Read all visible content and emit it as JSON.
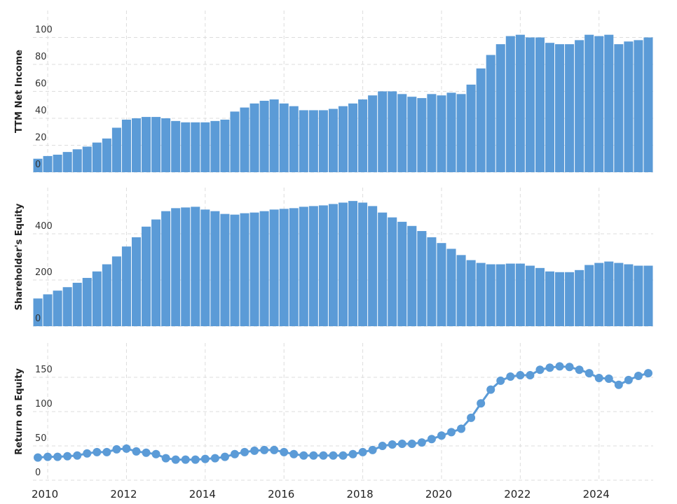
{
  "chart_data": [
    {
      "type": "bar",
      "ylabel": "TTM Net Income",
      "color": "#5b9bd7",
      "grid": true,
      "xlim": [
        2009.625,
        2025.375
      ],
      "ylim": [
        0,
        120
      ],
      "yticks": [
        0,
        20,
        40,
        60,
        80,
        100
      ],
      "x": [
        2009.75,
        2010,
        2010.25,
        2010.5,
        2010.75,
        2011,
        2011.25,
        2011.5,
        2011.75,
        2012,
        2012.25,
        2012.5,
        2012.75,
        2013,
        2013.25,
        2013.5,
        2013.75,
        2014,
        2014.25,
        2014.5,
        2014.75,
        2015,
        2015.25,
        2015.5,
        2015.75,
        2016,
        2016.25,
        2016.5,
        2016.75,
        2017,
        2017.25,
        2017.5,
        2017.75,
        2018,
        2018.25,
        2018.5,
        2018.75,
        2019,
        2019.25,
        2019.5,
        2019.75,
        2020,
        2020.25,
        2020.5,
        2020.75,
        2021,
        2021.25,
        2021.5,
        2021.75,
        2022,
        2022.25,
        2022.5,
        2022.75,
        2023,
        2023.25,
        2023.5,
        2023.75,
        2024,
        2024.25,
        2024.5,
        2024.75,
        2025,
        2025.25
      ],
      "values": [
        10,
        12,
        13,
        15,
        17,
        19,
        22,
        25,
        33,
        39,
        40,
        41,
        41,
        40,
        38,
        37,
        37,
        37,
        38,
        39,
        45,
        48,
        51,
        53,
        54,
        51,
        49,
        46,
        46,
        46,
        47,
        49,
        51,
        54,
        57,
        60,
        60,
        58,
        56,
        55,
        58,
        57,
        59,
        58,
        65,
        77,
        87,
        95,
        101,
        102,
        100,
        100,
        96,
        95,
        95,
        98,
        102,
        101,
        102,
        95,
        97,
        98,
        100
      ]
    },
    {
      "type": "bar",
      "ylabel": "Shareholder's Equity",
      "color": "#5b9bd7",
      "grid": true,
      "xlim": [
        2009.625,
        2025.375
      ],
      "ylim": [
        0,
        600
      ],
      "yticks": [
        0,
        200,
        400
      ],
      "x": [
        2009.75,
        2010,
        2010.25,
        2010.5,
        2010.75,
        2011,
        2011.25,
        2011.5,
        2011.75,
        2012,
        2012.25,
        2012.5,
        2012.75,
        2013,
        2013.25,
        2013.5,
        2013.75,
        2014,
        2014.25,
        2014.5,
        2014.75,
        2015,
        2015.25,
        2015.5,
        2015.75,
        2016,
        2016.25,
        2016.5,
        2016.75,
        2017,
        2017.25,
        2017.5,
        2017.75,
        2018,
        2018.25,
        2018.5,
        2018.75,
        2019,
        2019.25,
        2019.5,
        2019.75,
        2020,
        2020.25,
        2020.5,
        2020.75,
        2021,
        2021.25,
        2021.5,
        2021.75,
        2022,
        2022.25,
        2022.5,
        2022.75,
        2023,
        2023.25,
        2023.5,
        2023.75,
        2024,
        2024.25,
        2024.5,
        2024.75,
        2025,
        2025.25
      ],
      "values": [
        120,
        138,
        154,
        169,
        188,
        209,
        237,
        268,
        302,
        345,
        385,
        431,
        462,
        498,
        511,
        514,
        517,
        505,
        498,
        486,
        483,
        489,
        492,
        498,
        505,
        508,
        511,
        517,
        520,
        523,
        529,
        535,
        542,
        535,
        520,
        492,
        471,
        452,
        434,
        412,
        385,
        360,
        335,
        308,
        286,
        274,
        268,
        268,
        271,
        271,
        262,
        252,
        237,
        234,
        234,
        243,
        265,
        274,
        280,
        274,
        268,
        262,
        262
      ]
    },
    {
      "type": "line",
      "ylabel": "Return on Equity",
      "color": "#5b9bd7",
      "grid": true,
      "xlim": [
        2009.625,
        2025.375
      ],
      "xticks": [
        2010,
        2012,
        2014,
        2016,
        2018,
        2020,
        2022,
        2024
      ],
      "ylim": [
        0,
        200
      ],
      "yticks": [
        0,
        50,
        100,
        150
      ],
      "x": [
        2009.75,
        2010,
        2010.25,
        2010.5,
        2010.75,
        2011,
        2011.25,
        2011.5,
        2011.75,
        2012,
        2012.25,
        2012.5,
        2012.75,
        2013,
        2013.25,
        2013.5,
        2013.75,
        2014,
        2014.25,
        2014.5,
        2014.75,
        2015,
        2015.25,
        2015.5,
        2015.75,
        2016,
        2016.25,
        2016.5,
        2016.75,
        2017,
        2017.25,
        2017.5,
        2017.75,
        2018,
        2018.25,
        2018.5,
        2018.75,
        2019,
        2019.25,
        2019.5,
        2019.75,
        2020,
        2020.25,
        2020.5,
        2020.75,
        2021,
        2021.25,
        2021.5,
        2021.75,
        2022,
        2022.25,
        2022.5,
        2022.75,
        2023,
        2023.25,
        2023.5,
        2023.75,
        2024,
        2024.25,
        2024.5,
        2024.75,
        2025,
        2025.25
      ],
      "values": [
        33,
        34,
        34,
        35,
        36,
        39,
        41,
        41,
        45,
        46,
        42,
        40,
        38,
        32,
        30,
        30,
        30,
        31,
        32,
        34,
        38,
        41,
        43,
        44,
        44,
        41,
        38,
        36,
        36,
        36,
        36,
        36,
        38,
        41,
        44,
        50,
        52,
        53,
        53,
        55,
        60,
        65,
        70,
        75,
        91,
        112,
        132,
        145,
        151,
        153,
        153,
        161,
        164,
        166,
        165,
        161,
        156,
        149,
        148,
        139,
        146,
        152,
        156
      ]
    }
  ]
}
